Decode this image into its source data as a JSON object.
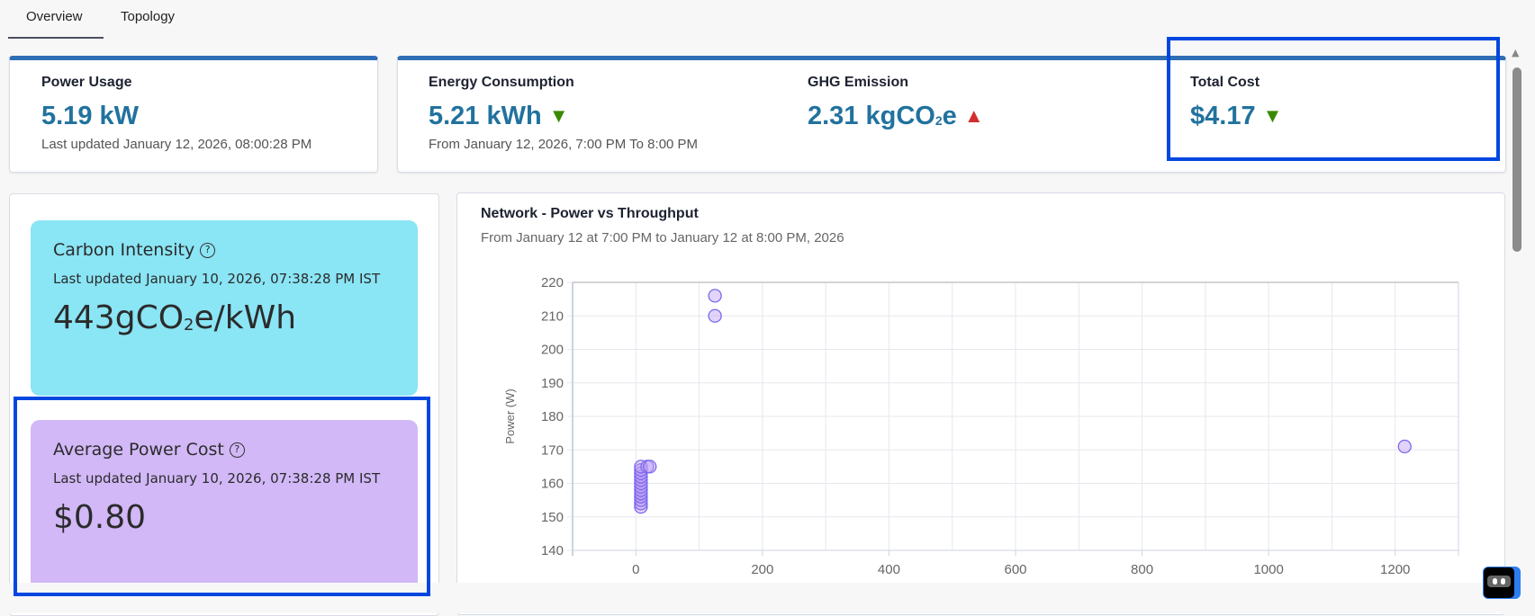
{
  "tabs": [
    {
      "label": "Overview",
      "active": true
    },
    {
      "label": "Topology",
      "active": false
    }
  ],
  "kpis": {
    "power_usage": {
      "label": "Power Usage",
      "value": "5.19 kW",
      "sub": "Last updated January 12, 2026, 08:00:28 PM"
    },
    "energy": {
      "label": "Energy Consumption",
      "value": "5.21 kWh",
      "trend": "down",
      "sub": "From January 12, 2026, 7:00 PM To 8:00 PM"
    },
    "ghg": {
      "label": "GHG Emission",
      "value_prefix": "2.31 kgCO",
      "value_sub": "2",
      "value_suffix": "e",
      "trend": "up"
    },
    "total_cost": {
      "label": "Total Cost",
      "value": "$4.17",
      "trend": "down"
    }
  },
  "tiles": {
    "carbon": {
      "title": "Carbon Intensity",
      "updated": "Last updated January 10, 2026, 07:38:28 PM IST",
      "value_prefix": "443gCO",
      "value_sub": "2",
      "value_suffix": "e/kWh",
      "color": "#8ae5f5"
    },
    "cost": {
      "title": "Average Power Cost",
      "updated": "Last updated January 10, 2026, 07:38:28 PM IST",
      "value": "$0.80",
      "color": "#d2b8f7"
    }
  },
  "chart_panel": {
    "title": "Network - Power vs Throughput",
    "subtitle": "From January 12 at 7:00 PM to January 12 at 8:00 PM, 2026"
  },
  "chart_data": {
    "type": "scatter",
    "ylabel": "Power (W)",
    "xlabel": "",
    "xlim": [
      -100,
      1300
    ],
    "ylim": [
      140,
      220
    ],
    "xticks": [
      0,
      200,
      400,
      600,
      800,
      1000,
      1200
    ],
    "yticks": [
      140,
      150,
      160,
      170,
      180,
      190,
      200,
      210,
      220
    ],
    "grid": true,
    "point_color": "#7b68ee",
    "points": [
      [
        8,
        153
      ],
      [
        8,
        154
      ],
      [
        8,
        155
      ],
      [
        8,
        156
      ],
      [
        8,
        157
      ],
      [
        8,
        158
      ],
      [
        8,
        159
      ],
      [
        8,
        160
      ],
      [
        8,
        161
      ],
      [
        8,
        162
      ],
      [
        8,
        163
      ],
      [
        8,
        164
      ],
      [
        8,
        165
      ],
      [
        18,
        165
      ],
      [
        22,
        165
      ],
      [
        125,
        216
      ],
      [
        125,
        210
      ],
      [
        1215,
        171
      ]
    ]
  },
  "highlight_color": "#0047e0"
}
